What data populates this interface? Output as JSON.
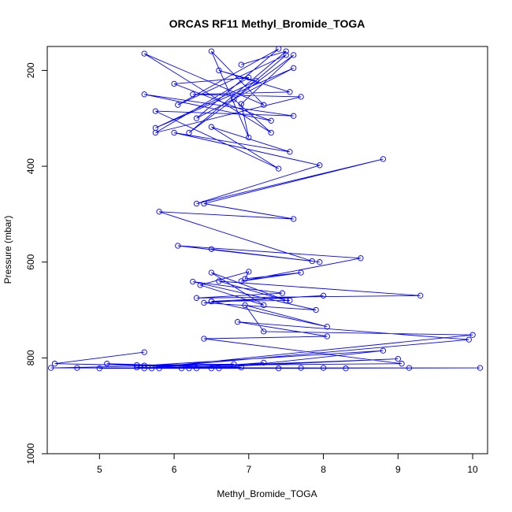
{
  "chart_data": {
    "type": "line",
    "title": "ORCAS RF11 Methyl_Bromide_TOGA",
    "xlabel": "Methyl_Bromide_TOGA",
    "ylabel": "Pressure (mbar)",
    "xlim": [
      4.3,
      10.2
    ],
    "ylim": [
      1000,
      150
    ],
    "y_reversed": true,
    "x_ticks": [
      5,
      6,
      7,
      8,
      9,
      10
    ],
    "y_ticks": [
      200,
      400,
      600,
      800,
      1000
    ],
    "grid": false,
    "legend": "none",
    "marker": "open-circle",
    "color": "#0000ff",
    "series": [
      {
        "x": [
          5.6,
          4.4,
          6.9,
          5.1,
          6.3,
          5.5,
          6.8,
          4.35,
          7.4,
          4.7,
          10.1,
          6.5,
          8.0,
          5.8,
          9.15,
          5.0,
          7.7,
          5.5,
          6.2,
          8.3,
          5.7,
          9.0,
          6.1,
          7.2,
          6.6,
          8.8,
          5.6,
          9.05,
          6.4,
          8.05,
          6.85,
          9.95,
          5.6,
          10.0,
          7.2,
          6.95,
          8.05,
          6.5,
          7.55,
          6.5,
          8.0,
          6.4,
          7.9,
          6.25,
          7.45,
          6.3,
          9.3,
          6.6,
          7.5,
          6.5,
          7.2,
          6.35,
          7.0,
          6.95,
          7.7,
          6.9,
          8.5,
          6.05,
          7.95,
          6.5,
          7.85,
          5.8,
          7.6,
          6.4,
          8.8,
          6.3,
          7.95,
          6.0,
          7.55,
          6.5,
          7.4,
          5.75,
          7.6,
          5.6,
          7.3,
          6.0,
          7.0,
          5.75,
          7.7,
          6.25,
          7.55,
          6.6,
          7.1,
          5.75,
          7.6,
          6.3,
          7.4,
          6.05,
          7.5,
          6.8,
          7.3,
          5.6,
          7.2,
          6.5,
          7.0,
          6.9,
          7.6,
          6.2,
          7.5,
          6.9
        ],
        "y": [
          788,
          812,
          820,
          812,
          822,
          815,
          813,
          821,
          822,
          821,
          821,
          822,
          821,
          822,
          821,
          822,
          821,
          820,
          822,
          822,
          822,
          802,
          822,
          810,
          822,
          785,
          816,
          812,
          760,
          755,
          725,
          762,
          822,
          752,
          745,
          690,
          735,
          682,
          680,
          682,
          670,
          685,
          700,
          641,
          665,
          675,
          670,
          640,
          680,
          622,
          690,
          648,
          620,
          635,
          622,
          640,
          592,
          566,
          600,
          573,
          598,
          495,
          510,
          478,
          385,
          478,
          398,
          330,
          370,
          318,
          405,
          285,
          295,
          250,
          305,
          228,
          215,
          330,
          255,
          250,
          245,
          200,
          222,
          320,
          195,
          300,
          155,
          272,
          168,
          260,
          330,
          165,
          272,
          160,
          340,
          270,
          168,
          330,
          160,
          188
        ]
      }
    ]
  }
}
